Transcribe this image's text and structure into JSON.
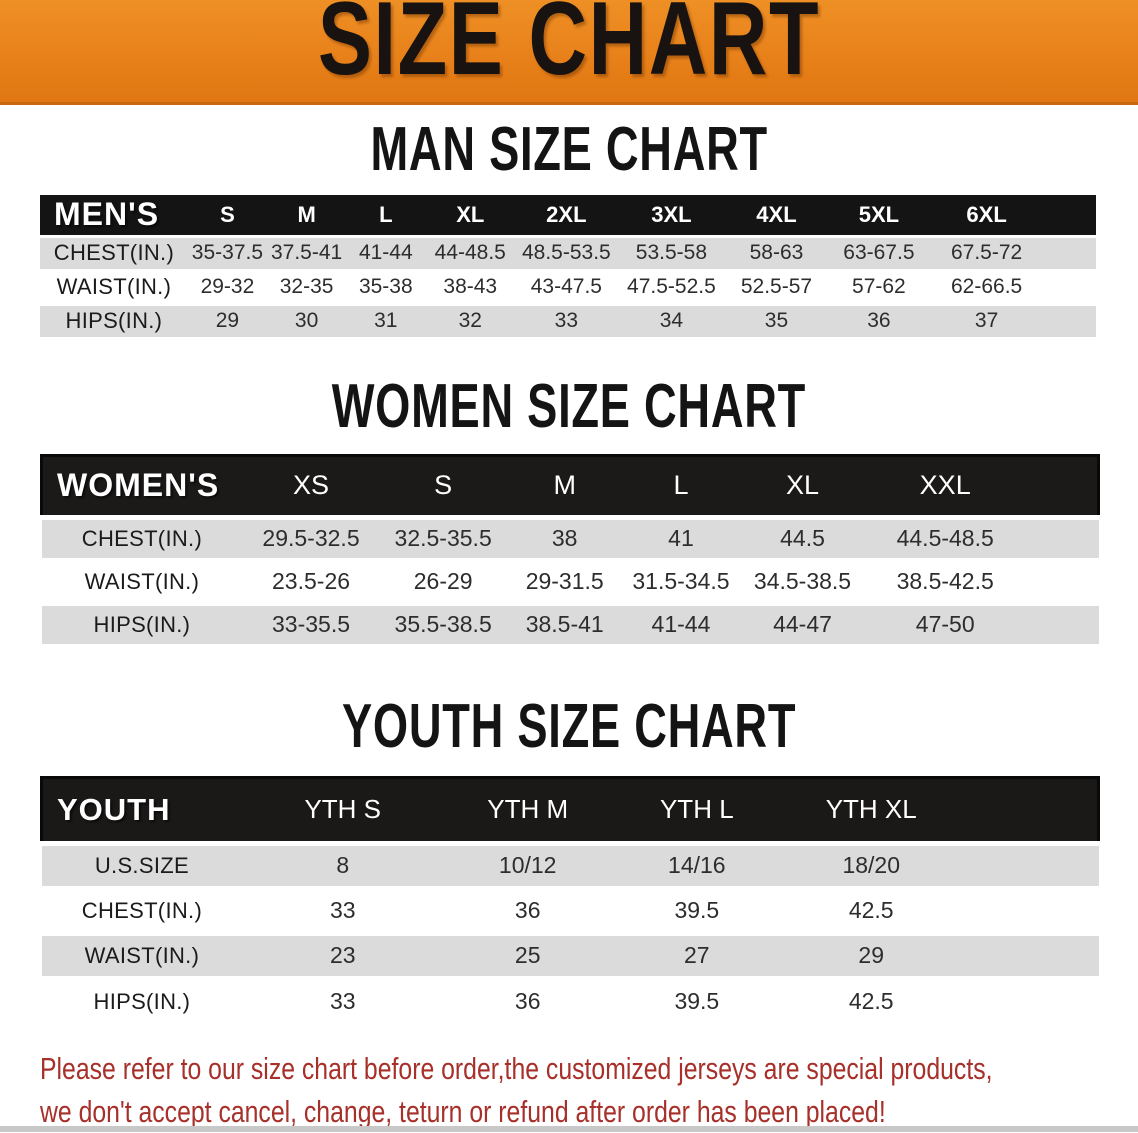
{
  "banner": {
    "title": "SIZE CHART",
    "bg_color": "#E8811A"
  },
  "sections": [
    {
      "heading": "MAN SIZE CHART",
      "table": {
        "header_label": "MEN'S",
        "columns": [
          "S",
          "M",
          "L",
          "XL",
          "2XL",
          "3XL",
          "4XL",
          "5XL",
          "6XL"
        ],
        "rows": [
          {
            "label": "CHEST(IN.)",
            "values": [
              "35-37.5",
              "37.5-41",
              "41-44",
              "44-48.5",
              "48.5-53.5",
              "53.5-58",
              "58-63",
              "63-67.5",
              "67.5-72"
            ]
          },
          {
            "label": "WAIST(IN.)",
            "values": [
              "29-32",
              "32-35",
              "35-38",
              "38-43",
              "43-47.5",
              "47.5-52.5",
              "52.5-57",
              "57-62",
              "62-66.5"
            ]
          },
          {
            "label": "HIPS(IN.)",
            "values": [
              "29",
              "30",
              "31",
              "32",
              "33",
              "34",
              "35",
              "36",
              "37"
            ]
          }
        ]
      }
    },
    {
      "heading": "WOMEN SIZE CHART",
      "table": {
        "header_label": "WOMEN'S",
        "columns": [
          "XS",
          "S",
          "M",
          "L",
          "XL",
          "XXL"
        ],
        "rows": [
          {
            "label": "CHEST(IN.)",
            "values": [
              "29.5-32.5",
              "32.5-35.5",
              "38",
              "41",
              "44.5",
              "44.5-48.5"
            ]
          },
          {
            "label": "WAIST(IN.)",
            "values": [
              "23.5-26",
              "26-29",
              "29-31.5",
              "31.5-34.5",
              "34.5-38.5",
              "38.5-42.5"
            ]
          },
          {
            "label": "HIPS(IN.)",
            "values": [
              "33-35.5",
              "35.5-38.5",
              "38.5-41",
              "41-44",
              "44-47",
              "47-50"
            ]
          }
        ]
      }
    },
    {
      "heading": "YOUTH SIZE CHART",
      "table": {
        "header_label": "YOUTH",
        "columns": [
          "YTH S",
          "YTH M",
          "YTH L",
          "YTH XL"
        ],
        "rows": [
          {
            "label": "U.S.SIZE",
            "values": [
              "8",
              "10/12",
              "14/16",
              "18/20"
            ]
          },
          {
            "label": "CHEST(IN.)",
            "values": [
              "33",
              "36",
              "39.5",
              "42.5"
            ]
          },
          {
            "label": "WAIST(IN.)",
            "values": [
              "23",
              "25",
              "27",
              "29"
            ]
          },
          {
            "label": "HIPS(IN.)",
            "values": [
              "33",
              "36",
              "39.5",
              "42.5"
            ]
          }
        ]
      }
    }
  ],
  "footer": {
    "line1": "Please refer to our size chart before order,the customized jerseys are special products,",
    "line2": "we don't accept cancel, change, teturn or refund after order has been placed!"
  },
  "colors": {
    "banner_bg": "#E8811A",
    "table_header_bg": "#141414",
    "row_stripe": "#DBDBDB",
    "notice_text": "#A7302A"
  }
}
